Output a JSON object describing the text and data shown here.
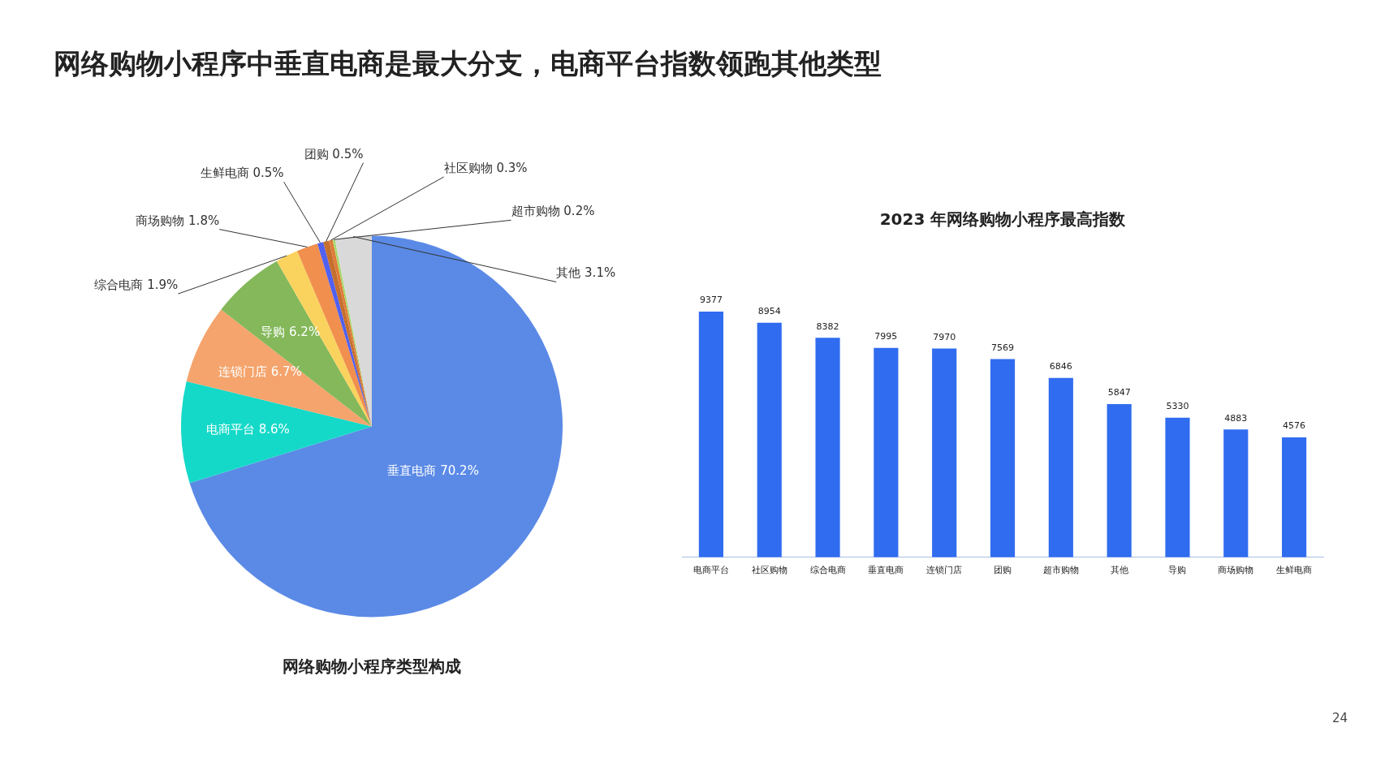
{
  "chart_data": [
    {
      "type": "other",
      "title": "网络购物小程序中垂直电商是最大分支，电商平台指数领跑其他类型",
      "annotations": [
        "24"
      ]
    },
    {
      "type": "pie",
      "title": "网络购物小程序类型构成",
      "categories": [
        "垂直电商",
        "电商平台",
        "连锁门店",
        "导购",
        "综合电商",
        "商场购物",
        "生鲜电商",
        "团购",
        "社区购物",
        "超市购物",
        "其他"
      ],
      "values": [
        70.2,
        8.6,
        6.7,
        6.2,
        1.9,
        1.8,
        0.5,
        0.5,
        0.3,
        0.2,
        3.1
      ],
      "colors": [
        "#5b8ae6",
        "#14d9c8",
        "#f4a46c",
        "#84b85a",
        "#fad35e",
        "#f08f4e",
        "#5060f0",
        "#c6702e",
        "#e07b39",
        "#a8d86a",
        "#d9d9d9"
      ],
      "value_labels": [
        "70.2%",
        "8.6%",
        "6.7%",
        "6.2%",
        "1.9%",
        "1.8%",
        "0.5%",
        "0.5%",
        "0.3%",
        "0.2%",
        "3.1%"
      ]
    },
    {
      "type": "bar",
      "title": "2023 年网络购物小程序最高指数",
      "categories": [
        "电商平台",
        "社区购物",
        "综合电商",
        "垂直电商",
        "连锁门店",
        "团购",
        "超市购物",
        "其他",
        "导购",
        "商场购物",
        "生鲜电商"
      ],
      "values": [
        9377,
        8954,
        8382,
        7995,
        7970,
        7569,
        6846,
        5847,
        5330,
        4883,
        4576
      ],
      "color": "#306cf0",
      "data_labels": true,
      "tick_labels": "x",
      "legend": false,
      "grid": false
    }
  ]
}
